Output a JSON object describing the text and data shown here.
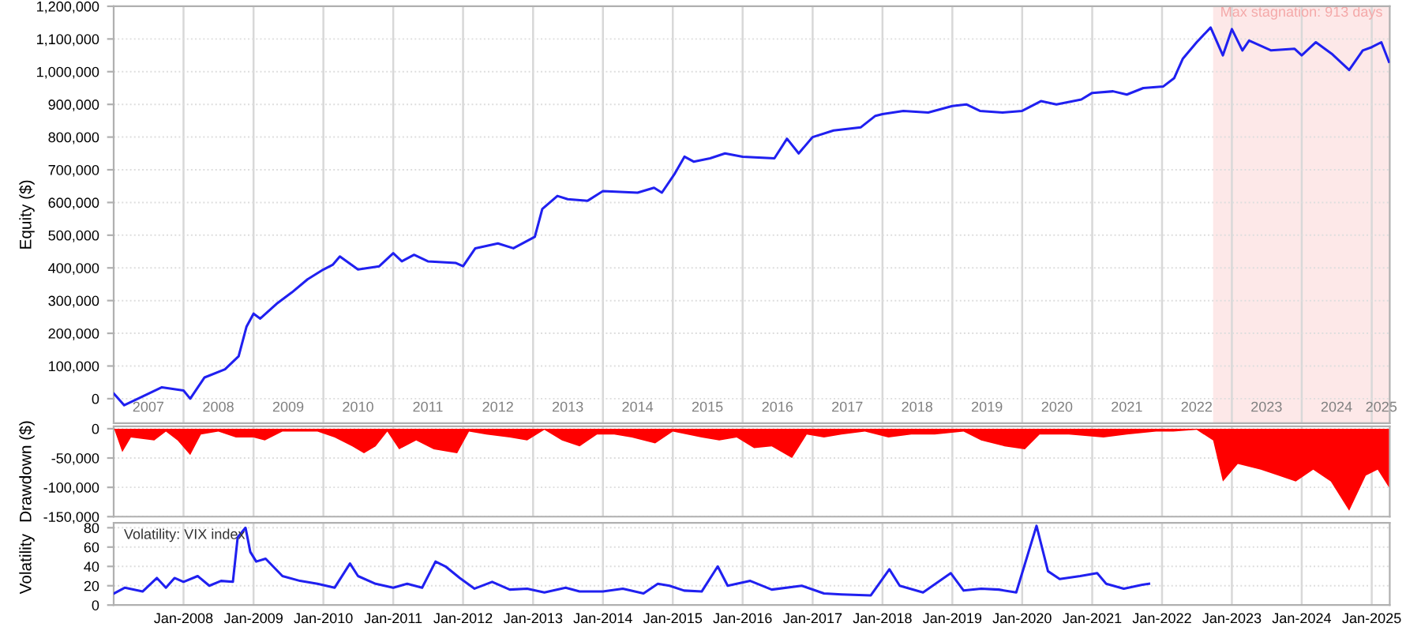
{
  "chart_data": [
    {
      "type": "line",
      "ylabel": "Equity ($)",
      "xlim": [
        "2007-01-01",
        "2025-04-05"
      ],
      "ylim": [
        -75000,
        1200000
      ],
      "yticks": [
        0,
        {
          "value": 100000,
          "label": "100,000"
        },
        {
          "value": 200000,
          "label": "200,000"
        },
        {
          "value": 300000,
          "label": "300,000"
        },
        {
          "value": 400000,
          "label": "400,000"
        },
        {
          "value": 500000,
          "label": "500,000"
        },
        {
          "value": 600000,
          "label": "600,000"
        },
        {
          "value": 700000,
          "label": "700,000"
        },
        {
          "value": 800000,
          "label": "800,000"
        },
        {
          "value": 900000,
          "label": "900,000"
        },
        {
          "value": 1000000,
          "label": "1,000,000"
        },
        {
          "value": 1100000,
          "label": "1,100,000"
        },
        {
          "value": 1200000,
          "label": "1,200,000"
        }
      ],
      "xticks": [
        {
          "value": "2008-01-01",
          "label": null
        },
        {
          "value": "2009-01-01",
          "label": null
        },
        {
          "value": "2010-01-01",
          "label": null
        },
        {
          "value": "2011-01-01",
          "label": null
        },
        {
          "value": "2012-01-01",
          "label": null
        },
        {
          "value": "2013-01-01",
          "label": null
        },
        {
          "value": "2014-01-01",
          "label": null
        },
        {
          "value": "2015-01-01",
          "label": null
        },
        {
          "value": "2016-01-01",
          "label": null
        },
        {
          "value": "2017-01-01",
          "label": null
        },
        {
          "value": "2018-01-01",
          "label": null
        },
        {
          "value": "2019-01-01",
          "label": null
        },
        {
          "value": "2020-01-01",
          "label": null
        },
        {
          "value": "2021-01-01",
          "label": null
        },
        {
          "value": "2022-01-01",
          "label": null
        },
        {
          "value": "2023-01-01",
          "label": null
        },
        {
          "value": "2024-01-01",
          "label": null
        },
        {
          "value": "2025-01-01",
          "label": null
        },
        {
          "value": "2007-07-01",
          "label": "2007"
        },
        {
          "value": "2008-07-01",
          "label": "2008"
        },
        {
          "value": "2009-07-01",
          "label": "2009"
        },
        {
          "value": "2010-07-01",
          "label": "2010"
        },
        {
          "value": "2011-07-01",
          "label": "2011"
        },
        {
          "value": "2012-07-01",
          "label": "2012"
        },
        {
          "value": "2013-07-01",
          "label": "2013"
        },
        {
          "value": "2014-07-01",
          "label": "2014"
        },
        {
          "value": "2015-07-01",
          "label": "2015"
        },
        {
          "value": "2016-07-01",
          "label": "2016"
        },
        {
          "value": "2017-07-01",
          "label": "2017"
        },
        {
          "value": "2018-07-01",
          "label": "2018"
        },
        {
          "value": "2019-07-01",
          "label": "2019"
        },
        {
          "value": "2020-07-01",
          "label": "2020"
        },
        {
          "value": "2021-07-01",
          "label": "2021"
        },
        {
          "value": "2022-07-01",
          "label": "2022"
        },
        {
          "value": "2023-07-01",
          "label": "2023"
        },
        {
          "value": "2024-07-01",
          "label": "2024"
        },
        {
          "value": "2025-02-20",
          "label": "2025"
        }
      ],
      "grid": true,
      "bands": [
        {
          "axis": "x",
          "from": "2022-09-25",
          "to": "2025-04-05",
          "label": "Max stagnation: 913 days",
          "color": "#fde8e8"
        }
      ],
      "series": [
        {
          "color": "#2020f0",
          "x": [
            "2007-01-03",
            "2007-02-25",
            "2007-05-25",
            "2007-09-10",
            "2008-01-01",
            "2008-02-05",
            "2008-04-20",
            "2008-08-05",
            "2008-10-15",
            "2008-11-25",
            "2009-01-01",
            "2009-02-05",
            "2009-05-01",
            "2009-07-20",
            "2009-10-10",
            "2010-01-01",
            "2010-02-20",
            "2010-03-28",
            "2010-07-01",
            "2010-10-20",
            "2011-01-01",
            "2011-02-15",
            "2011-04-20",
            "2011-07-01",
            "2011-11-25",
            "2012-01-01",
            "2012-03-05",
            "2012-07-01",
            "2012-09-20",
            "2013-01-10",
            "2013-02-18",
            "2013-05-08",
            "2013-07-01",
            "2013-10-12",
            "2014-01-01",
            "2014-07-01",
            "2014-09-25",
            "2014-11-05",
            "2015-01-08",
            "2015-03-03",
            "2015-04-20",
            "2015-07-15",
            "2015-10-01",
            "2016-01-01",
            "2016-06-15",
            "2016-08-20",
            "2016-10-20",
            "2017-01-01",
            "2017-04-20",
            "2017-09-10",
            "2017-11-25",
            "2018-01-01",
            "2018-04-20",
            "2018-08-28",
            "2019-01-01",
            "2019-03-15",
            "2019-05-25",
            "2019-09-20",
            "2020-01-01",
            "2020-04-08",
            "2020-06-28",
            "2020-11-05",
            "2021-01-01",
            "2021-04-20",
            "2021-07-01",
            "2021-09-25",
            "2022-01-08",
            "2022-03-05",
            "2022-04-20",
            "2022-07-01",
            "2022-09-12",
            "2022-11-15",
            "2023-01-01",
            "2023-02-25",
            "2023-04-01",
            "2023-07-25",
            "2023-11-25",
            "2024-01-01",
            "2024-03-15",
            "2024-06-05",
            "2024-09-05",
            "2024-11-15",
            "2025-01-01",
            "2025-02-20",
            "2025-04-01"
          ],
          "values": [
            15000,
            -20000,
            5000,
            35000,
            25000,
            0,
            65000,
            90000,
            130000,
            220000,
            260000,
            245000,
            290000,
            325000,
            365000,
            395000,
            410000,
            435000,
            395000,
            405000,
            445000,
            420000,
            440000,
            420000,
            415000,
            405000,
            460000,
            475000,
            460000,
            495000,
            580000,
            620000,
            610000,
            605000,
            635000,
            630000,
            645000,
            630000,
            685000,
            740000,
            725000,
            735000,
            750000,
            740000,
            735000,
            795000,
            750000,
            800000,
            820000,
            830000,
            865000,
            870000,
            880000,
            875000,
            895000,
            900000,
            880000,
            875000,
            880000,
            910000,
            900000,
            915000,
            935000,
            940000,
            930000,
            950000,
            955000,
            980000,
            1040000,
            1090000,
            1135000,
            1050000,
            1130000,
            1065000,
            1095000,
            1065000,
            1070000,
            1050000,
            1090000,
            1055000,
            1005000,
            1065000,
            1075000,
            1090000,
            1030000
          ]
        }
      ]
    },
    {
      "type": "area",
      "ylabel": "Drawdown ($)",
      "xlim": [
        "2007-01-01",
        "2025-04-05"
      ],
      "ylim": [
        -150000,
        4000
      ],
      "yticks": [
        {
          "value": -150000,
          "label": "-150,000"
        },
        {
          "value": -100000,
          "label": "-100,000"
        },
        {
          "value": -50000,
          "label": "-50,000"
        },
        0
      ],
      "xticks": [
        {
          "value": "2008-01-01",
          "label": null
        },
        {
          "value": "2009-01-01",
          "label": null
        },
        {
          "value": "2010-01-01",
          "label": null
        },
        {
          "value": "2011-01-01",
          "label": null
        },
        {
          "value": "2012-01-01",
          "label": null
        },
        {
          "value": "2013-01-01",
          "label": null
        },
        {
          "value": "2014-01-01",
          "label": null
        },
        {
          "value": "2015-01-01",
          "label": null
        },
        {
          "value": "2016-01-01",
          "label": null
        },
        {
          "value": "2017-01-01",
          "label": null
        },
        {
          "value": "2018-01-01",
          "label": null
        },
        {
          "value": "2019-01-01",
          "label": null
        },
        {
          "value": "2020-01-01",
          "label": null
        },
        {
          "value": "2021-01-01",
          "label": null
        },
        {
          "value": "2022-01-01",
          "label": null
        },
        {
          "value": "2023-01-01",
          "label": null
        },
        {
          "value": "2024-01-01",
          "label": null
        },
        {
          "value": "2025-01-01",
          "label": null
        }
      ],
      "grid": true,
      "tick_labels": "y",
      "series": [
        {
          "color": "#ff0000",
          "x": [
            "2007-01-03",
            "2007-02-15",
            "2007-04-01",
            "2007-08-01",
            "2007-10-01",
            "2007-12-01",
            "2008-02-05",
            "2008-04-01",
            "2008-07-01",
            "2008-10-01",
            "2009-01-01",
            "2009-03-01",
            "2009-06-01",
            "2009-09-01",
            "2009-12-01",
            "2010-03-01",
            "2010-06-01",
            "2010-08-01",
            "2010-10-01",
            "2010-12-01",
            "2011-02-01",
            "2011-05-01",
            "2011-08-01",
            "2011-12-01",
            "2012-02-01",
            "2012-05-01",
            "2012-09-01",
            "2012-12-01",
            "2013-03-01",
            "2013-06-01",
            "2013-09-01",
            "2013-12-01",
            "2014-03-01",
            "2014-06-01",
            "2014-10-01",
            "2015-01-01",
            "2015-06-01",
            "2015-09-01",
            "2015-12-01",
            "2016-03-01",
            "2016-06-01",
            "2016-09-15",
            "2016-12-01",
            "2017-03-01",
            "2017-06-01",
            "2017-10-01",
            "2018-02-01",
            "2018-06-01",
            "2018-10-01",
            "2019-03-01",
            "2019-06-01",
            "2019-10-01",
            "2020-01-15",
            "2020-04-01",
            "2020-09-01",
            "2021-03-01",
            "2021-07-01",
            "2021-12-01",
            "2022-03-01",
            "2022-07-01",
            "2022-09-25",
            "2022-11-15",
            "2023-02-01",
            "2023-06-01",
            "2023-09-01",
            "2023-12-01",
            "2024-03-01",
            "2024-06-01",
            "2024-09-05",
            "2024-12-01",
            "2025-02-01",
            "2025-04-01"
          ],
          "values": [
            0,
            -40000,
            -15000,
            -20000,
            -5000,
            -20000,
            -45000,
            -10000,
            -5000,
            -15000,
            -15000,
            -20000,
            -5000,
            -5000,
            -5000,
            -15000,
            -30000,
            -42000,
            -30000,
            -5000,
            -35000,
            -20000,
            -35000,
            -42000,
            -5000,
            -10000,
            -15000,
            -20000,
            -2000,
            -20000,
            -30000,
            -10000,
            -10000,
            -15000,
            -25000,
            -5000,
            -15000,
            -20000,
            -15000,
            -33000,
            -30000,
            -50000,
            -10000,
            -15000,
            -10000,
            -5000,
            -15000,
            -10000,
            -10000,
            -5000,
            -20000,
            -30000,
            -35000,
            -10000,
            -10000,
            -15000,
            -10000,
            -5000,
            -5000,
            -2000,
            -20000,
            -90000,
            -60000,
            -70000,
            -80000,
            -90000,
            -70000,
            -90000,
            -140000,
            -80000,
            -70000,
            -100000
          ]
        }
      ]
    },
    {
      "type": "line",
      "ylabel": "Volatility",
      "xlim": [
        "2007-01-01",
        "2025-04-05"
      ],
      "ylim": [
        0,
        85
      ],
      "yticks": [
        0,
        20,
        40,
        60,
        80
      ],
      "xticks": [
        {
          "value": "2008-01-01",
          "label": "Jan-2008"
        },
        {
          "value": "2009-01-01",
          "label": "Jan-2009"
        },
        {
          "value": "2010-01-01",
          "label": "Jan-2010"
        },
        {
          "value": "2011-01-01",
          "label": "Jan-2011"
        },
        {
          "value": "2012-01-01",
          "label": "Jan-2012"
        },
        {
          "value": "2013-01-01",
          "label": "Jan-2013"
        },
        {
          "value": "2014-01-01",
          "label": "Jan-2014"
        },
        {
          "value": "2015-01-01",
          "label": "Jan-2015"
        },
        {
          "value": "2016-01-01",
          "label": "Jan-2016"
        },
        {
          "value": "2017-01-01",
          "label": "Jan-2017"
        },
        {
          "value": "2018-01-01",
          "label": "Jan-2018"
        },
        {
          "value": "2019-01-01",
          "label": "Jan-2019"
        },
        {
          "value": "2020-01-01",
          "label": "Jan-2020"
        },
        {
          "value": "2021-01-01",
          "label": "Jan-2021"
        },
        {
          "value": "2022-01-01",
          "label": "Jan-2022"
        },
        {
          "value": "2023-01-01",
          "label": "Jan-2023"
        },
        {
          "value": "2024-01-01",
          "label": "Jan-2024"
        },
        {
          "value": "2025-01-01",
          "label": "Jan-2025"
        }
      ],
      "grid": true,
      "annotations": [
        "Volatility: VIX index"
      ],
      "series": [
        {
          "color": "#2020f0",
          "x": [
            "2007-01-03",
            "2007-03-01",
            "2007-06-01",
            "2007-08-15",
            "2007-10-01",
            "2007-11-15",
            "2008-01-01",
            "2008-03-15",
            "2008-05-15",
            "2008-07-15",
            "2008-09-15",
            "2008-10-10",
            "2008-11-20",
            "2008-12-15",
            "2009-01-15",
            "2009-03-05",
            "2009-06-01",
            "2009-09-01",
            "2009-12-01",
            "2010-03-01",
            "2010-05-20",
            "2010-07-01",
            "2010-10-01",
            "2011-01-01",
            "2011-03-15",
            "2011-06-01",
            "2011-08-10",
            "2011-10-01",
            "2011-12-15",
            "2012-03-01",
            "2012-06-01",
            "2012-09-01",
            "2012-12-01",
            "2013-03-01",
            "2013-06-20",
            "2013-09-01",
            "2014-01-01",
            "2014-04-15",
            "2014-08-01",
            "2014-10-15",
            "2014-12-15",
            "2015-03-01",
            "2015-06-01",
            "2015-08-24",
            "2015-10-15",
            "2016-02-10",
            "2016-06-01",
            "2016-11-05",
            "2017-03-01",
            "2017-06-01",
            "2017-11-01",
            "2018-02-06",
            "2018-04-01",
            "2018-08-01",
            "2018-12-24",
            "2019-03-01",
            "2019-06-01",
            "2019-09-01",
            "2019-12-01",
            "2020-03-16",
            "2020-05-15",
            "2020-07-15",
            "2020-10-30",
            "2021-01-27",
            "2021-03-15",
            "2021-06-15",
            "2021-09-20",
            "2021-10-25"
          ],
          "values": [
            12,
            18,
            14,
            28,
            18,
            28,
            24,
            30,
            20,
            25,
            24,
            70,
            80,
            55,
            45,
            48,
            30,
            25,
            22,
            18,
            43,
            30,
            22,
            18,
            22,
            18,
            45,
            40,
            28,
            17,
            24,
            16,
            17,
            13,
            18,
            14,
            14,
            17,
            12,
            22,
            20,
            15,
            14,
            40,
            20,
            25,
            16,
            20,
            12,
            11,
            10,
            37,
            20,
            13,
            33,
            15,
            17,
            16,
            13,
            82,
            35,
            27,
            30,
            33,
            22,
            17,
            21,
            22
          ]
        }
      ]
    }
  ]
}
